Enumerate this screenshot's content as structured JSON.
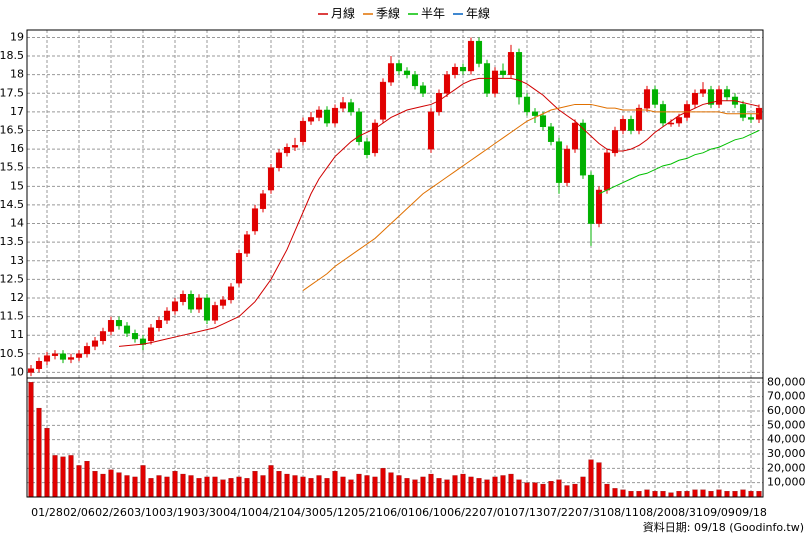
{
  "chart_data": [
    {
      "type": "candlestick",
      "open": [
        10.0,
        10.1,
        10.3,
        10.45,
        10.5,
        10.35,
        10.4,
        10.5,
        10.7,
        10.85,
        11.1,
        11.4,
        11.25,
        11.05,
        10.9,
        10.85,
        11.2,
        11.4,
        11.65,
        11.9,
        12.1,
        11.7,
        12.0,
        11.4,
        11.8,
        11.95,
        12.4,
        13.2,
        13.8,
        14.4,
        14.9,
        15.5,
        15.9,
        16.05,
        16.2,
        16.75,
        16.85,
        17.05,
        16.7,
        17.1,
        17.25,
        17.0,
        16.2,
        15.9,
        16.8,
        17.8,
        18.3,
        18.1,
        18.0,
        17.7,
        16.0,
        17.0,
        17.5,
        18.0,
        18.2,
        18.1,
        18.9,
        18.3,
        17.5,
        18.1,
        18.0,
        18.6,
        17.4,
        17.0,
        16.9,
        16.6,
        16.2,
        15.1,
        16.0,
        16.7,
        15.3,
        14.0,
        14.9,
        15.9,
        16.5,
        16.8,
        16.5,
        17.1,
        17.6,
        17.2,
        16.7,
        16.7,
        16.85,
        17.2,
        17.5,
        17.6,
        17.2,
        17.6,
        17.4,
        17.2,
        16.85,
        16.8
      ],
      "high": [
        10.2,
        10.4,
        10.55,
        10.6,
        10.6,
        10.5,
        10.6,
        10.8,
        10.95,
        11.2,
        11.5,
        11.5,
        11.35,
        11.15,
        11.0,
        11.3,
        11.5,
        11.75,
        12.0,
        12.2,
        12.2,
        12.1,
        12.1,
        11.9,
        12.05,
        12.4,
        13.3,
        13.8,
        14.5,
        14.9,
        15.6,
        16.0,
        16.15,
        16.3,
        16.85,
        17.0,
        17.15,
        17.15,
        17.2,
        17.4,
        17.35,
        17.1,
        16.3,
        16.8,
        17.9,
        18.5,
        18.4,
        18.2,
        18.1,
        17.8,
        17.1,
        17.6,
        18.1,
        18.3,
        18.3,
        19.0,
        19.0,
        18.4,
        18.2,
        18.3,
        18.8,
        18.7,
        17.5,
        17.1,
        17.0,
        16.7,
        16.3,
        16.1,
        16.8,
        16.8,
        15.4,
        15.0,
        16.0,
        16.6,
        16.9,
        16.9,
        17.2,
        17.7,
        17.7,
        17.3,
        16.8,
        16.95,
        17.3,
        17.6,
        17.8,
        17.7,
        17.7,
        17.7,
        17.5,
        17.3,
        16.95,
        17.2
      ],
      "low": [
        9.9,
        10.0,
        10.2,
        10.35,
        10.25,
        10.25,
        10.3,
        10.4,
        10.6,
        10.75,
        11.0,
        11.15,
        10.95,
        10.8,
        10.6,
        10.75,
        11.1,
        11.3,
        11.55,
        11.8,
        11.6,
        11.6,
        11.3,
        11.3,
        11.7,
        11.85,
        12.3,
        13.1,
        13.7,
        14.3,
        14.8,
        15.4,
        15.8,
        15.95,
        16.1,
        16.65,
        16.75,
        16.6,
        16.6,
        17.0,
        16.9,
        16.1,
        15.75,
        15.8,
        16.7,
        17.7,
        18.0,
        17.9,
        17.6,
        17.4,
        15.9,
        16.9,
        17.4,
        17.9,
        18.0,
        18.0,
        18.2,
        17.4,
        17.4,
        17.9,
        17.9,
        17.2,
        16.9,
        16.7,
        16.5,
        16.1,
        14.8,
        15.0,
        15.9,
        15.2,
        13.4,
        13.9,
        14.8,
        15.8,
        16.4,
        16.4,
        16.4,
        17.0,
        17.1,
        16.6,
        16.6,
        16.6,
        16.75,
        17.1,
        17.4,
        17.1,
        17.1,
        17.3,
        17.1,
        16.75,
        16.7,
        16.7
      ],
      "close": [
        10.1,
        10.3,
        10.45,
        10.5,
        10.35,
        10.4,
        10.5,
        10.7,
        10.85,
        11.1,
        11.4,
        11.25,
        11.05,
        10.9,
        10.75,
        11.2,
        11.4,
        11.65,
        11.9,
        12.1,
        11.7,
        12.0,
        11.4,
        11.8,
        11.95,
        12.3,
        13.2,
        13.7,
        14.4,
        14.8,
        15.5,
        15.9,
        16.05,
        16.1,
        16.75,
        16.85,
        17.05,
        16.7,
        17.1,
        17.25,
        17.0,
        16.2,
        15.85,
        16.7,
        17.8,
        18.3,
        18.1,
        18.0,
        17.7,
        17.5,
        17.0,
        17.5,
        18.0,
        18.2,
        18.1,
        18.9,
        18.3,
        17.5,
        18.1,
        18.0,
        18.6,
        17.4,
        17.0,
        16.9,
        16.6,
        16.2,
        15.1,
        16.0,
        16.7,
        15.3,
        14.0,
        14.9,
        15.9,
        16.5,
        16.8,
        16.5,
        17.1,
        17.6,
        17.2,
        16.7,
        16.7,
        16.85,
        17.2,
        17.5,
        17.6,
        17.2,
        17.6,
        17.4,
        17.2,
        16.85,
        16.8,
        17.1
      ],
      "up_color": "#e00000",
      "down_color": "#00b000",
      "series": [
        {
          "name": "月線",
          "color": "#d00000",
          "values": [
            null,
            null,
            null,
            null,
            null,
            null,
            null,
            null,
            null,
            null,
            null,
            10.7,
            10.72,
            10.74,
            10.76,
            10.8,
            10.85,
            10.9,
            10.95,
            11.0,
            11.05,
            11.1,
            11.15,
            11.2,
            11.3,
            11.4,
            11.5,
            11.7,
            11.9,
            12.2,
            12.5,
            12.9,
            13.3,
            13.8,
            14.3,
            14.8,
            15.2,
            15.5,
            15.8,
            16.0,
            16.2,
            16.35,
            16.45,
            16.55,
            16.7,
            16.85,
            16.95,
            17.05,
            17.1,
            17.15,
            17.2,
            17.3,
            17.45,
            17.6,
            17.75,
            17.85,
            17.9,
            17.9,
            17.9,
            17.9,
            17.9,
            17.85,
            17.75,
            17.6,
            17.45,
            17.25,
            17.05,
            16.9,
            16.75,
            16.55,
            16.35,
            16.15,
            16.0,
            15.95,
            15.95,
            16.0,
            16.1,
            16.25,
            16.45,
            16.6,
            16.75,
            16.9,
            17.0,
            17.1,
            17.2,
            17.25,
            17.3,
            17.3,
            17.3,
            17.25,
            17.2,
            17.15
          ]
        },
        {
          "name": "季線",
          "color": "#e07000",
          "values": [
            null,
            null,
            null,
            null,
            null,
            null,
            null,
            null,
            null,
            null,
            null,
            null,
            null,
            null,
            null,
            null,
            null,
            null,
            null,
            null,
            null,
            null,
            null,
            null,
            null,
            null,
            null,
            null,
            null,
            null,
            null,
            null,
            null,
            null,
            12.2,
            12.35,
            12.5,
            12.65,
            12.85,
            13.0,
            13.15,
            13.3,
            13.45,
            13.6,
            13.8,
            14.0,
            14.2,
            14.4,
            14.6,
            14.8,
            14.95,
            15.1,
            15.25,
            15.4,
            15.55,
            15.7,
            15.85,
            16.0,
            16.15,
            16.3,
            16.45,
            16.6,
            16.75,
            16.85,
            16.95,
            17.05,
            17.1,
            17.15,
            17.2,
            17.2,
            17.2,
            17.15,
            17.1,
            17.1,
            17.05,
            17.05,
            17.05,
            17.05,
            17.0,
            17.0,
            17.0,
            17.0,
            17.0,
            17.0,
            17.0,
            17.0,
            17.0,
            16.95,
            16.95,
            16.95,
            16.95,
            16.95
          ]
        },
        {
          "name": "半年",
          "color": "#00c000",
          "values": [
            null,
            null,
            null,
            null,
            null,
            null,
            null,
            null,
            null,
            null,
            null,
            null,
            null,
            null,
            null,
            null,
            null,
            null,
            null,
            null,
            null,
            null,
            null,
            null,
            null,
            null,
            null,
            null,
            null,
            null,
            null,
            null,
            null,
            null,
            null,
            null,
            null,
            null,
            null,
            null,
            null,
            null,
            null,
            null,
            null,
            null,
            null,
            null,
            null,
            null,
            null,
            null,
            null,
            null,
            null,
            null,
            null,
            null,
            null,
            null,
            null,
            null,
            null,
            null,
            null,
            null,
            null,
            null,
            null,
            null,
            null,
            14.8,
            14.9,
            15.0,
            15.1,
            15.2,
            15.3,
            15.35,
            15.45,
            15.55,
            15.6,
            15.7,
            15.75,
            15.85,
            15.9,
            16.0,
            16.05,
            16.15,
            16.25,
            16.3,
            16.4,
            16.5
          ]
        },
        {
          "name": "年線",
          "color": "#0060c0",
          "values": [
            null,
            null,
            null,
            null,
            null,
            null,
            null,
            null,
            null,
            null,
            null,
            null,
            null,
            null,
            null,
            null,
            null,
            null,
            null,
            null,
            null,
            null,
            null,
            null,
            null,
            null,
            null,
            null,
            null,
            null,
            null,
            null,
            null,
            null,
            null,
            null,
            null,
            null,
            null,
            null,
            null,
            null,
            null,
            null,
            null,
            null,
            null,
            null,
            null,
            null,
            null,
            null,
            null,
            null,
            null,
            null,
            null,
            null,
            null,
            null,
            null,
            null,
            null,
            null,
            null,
            null,
            null,
            null,
            null,
            null,
            null,
            null,
            null,
            null,
            null,
            null,
            null,
            null,
            null,
            null,
            null,
            null,
            null,
            null,
            null,
            null,
            null,
            null,
            null,
            null,
            null,
            null
          ]
        }
      ],
      "ylim": [
        9.85,
        19.2
      ],
      "yticks": [
        10,
        10.5,
        11,
        11.5,
        12,
        12.5,
        13,
        13.5,
        14,
        14.5,
        15,
        15.5,
        16,
        16.5,
        17,
        17.5,
        18,
        18.5,
        19
      ],
      "grid": true,
      "legend": "top"
    },
    {
      "type": "bar",
      "categories": [
        null,
        null,
        "01/28",
        null,
        null,
        null,
        "02/06",
        null,
        null,
        null,
        "02/26",
        null,
        null,
        null,
        "03/10",
        null,
        null,
        null,
        "03/19",
        null,
        null,
        null,
        "03/30",
        null,
        null,
        null,
        "04/10",
        null,
        null,
        null,
        "04/21",
        null,
        null,
        null,
        "04/30",
        null,
        null,
        null,
        "05/12",
        null,
        null,
        null,
        "05/21",
        null,
        null,
        null,
        "06/01",
        null,
        null,
        null,
        "06/10",
        null,
        null,
        null,
        "06/22",
        null,
        null,
        null,
        "07/01",
        null,
        null,
        null,
        "07/13",
        null,
        null,
        null,
        "07/22",
        null,
        null,
        null,
        "07/31",
        null,
        null,
        null,
        "08/11",
        null,
        null,
        null,
        "08/20",
        null,
        null,
        null,
        "08/31",
        null,
        null,
        null,
        "09/09",
        null,
        null,
        null,
        "09/18",
        null
      ],
      "values": [
        80000,
        62000,
        48000,
        29000,
        28000,
        29000,
        22000,
        25000,
        18000,
        16000,
        19000,
        17000,
        15000,
        14000,
        22000,
        13000,
        15000,
        14000,
        18000,
        16000,
        15000,
        13000,
        14000,
        14000,
        12000,
        13000,
        14000,
        13000,
        18000,
        15000,
        22000,
        18000,
        16000,
        15000,
        14000,
        13000,
        15000,
        13000,
        18000,
        14000,
        12000,
        16000,
        15000,
        14000,
        20000,
        17000,
        15000,
        13000,
        12000,
        14000,
        16000,
        13000,
        12000,
        15000,
        16000,
        14000,
        13000,
        12000,
        14000,
        15000,
        16000,
        12000,
        10000,
        10000,
        9000,
        11000,
        12000,
        8000,
        9000,
        14000,
        26000,
        24000,
        9000,
        6000,
        5000,
        4000,
        4000,
        5000,
        4000,
        4000,
        3000,
        4000,
        4000,
        5000,
        5000,
        4000,
        5000,
        4000,
        4000,
        5000,
        4000,
        4000
      ],
      "color": "#e00000",
      "ylim": [
        0,
        83000
      ],
      "yticks": [
        {
          "value": 10000,
          "label": "10,000"
        },
        {
          "value": 20000,
          "label": "20,000"
        },
        {
          "value": 30000,
          "label": "30,000"
        },
        {
          "value": 40000,
          "label": "40,000"
        },
        {
          "value": 50000,
          "label": "50,000"
        },
        {
          "value": 60000,
          "label": "60,000"
        },
        {
          "value": 70000,
          "label": "70,000"
        },
        {
          "value": 80000,
          "label": "80,000"
        }
      ],
      "grid": true,
      "note": "資料日期: 09/18 (Goodinfo.tw)"
    }
  ]
}
